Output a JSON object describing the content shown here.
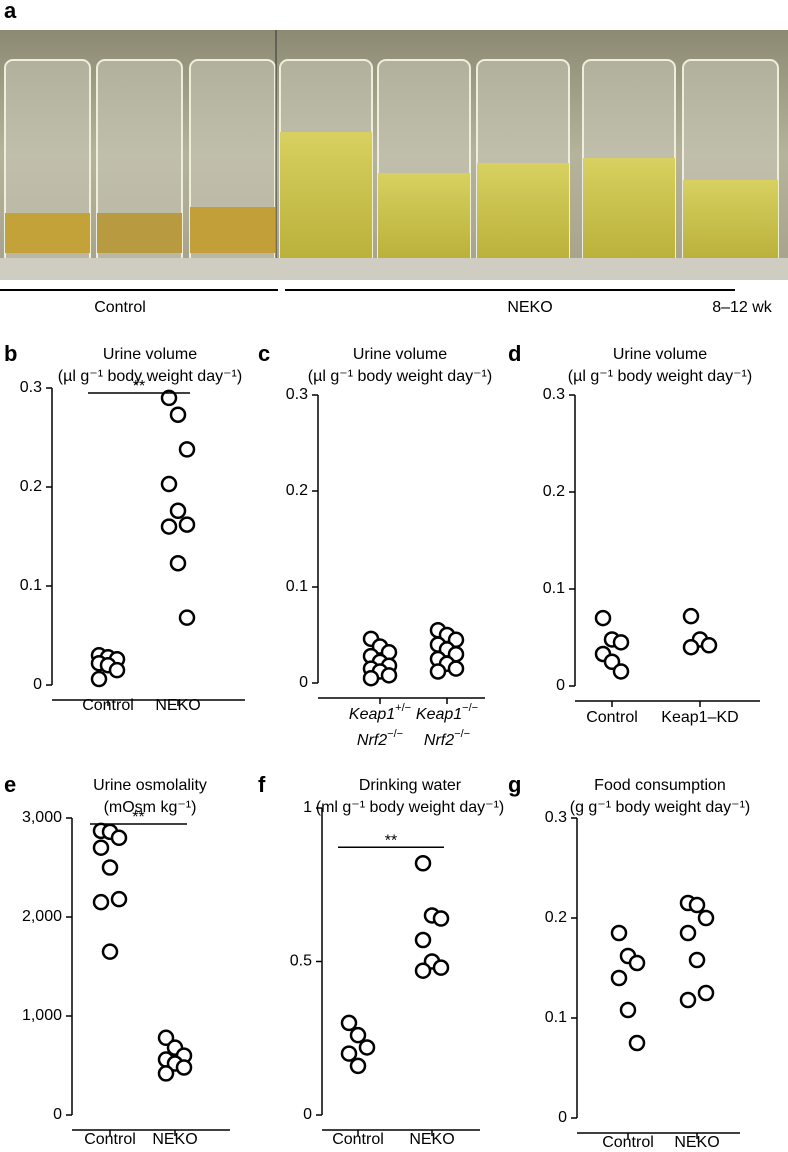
{
  "photo_panel": {
    "panel": "a",
    "groups": [
      "Control",
      "NEKO"
    ],
    "age": "8–12 wk"
  },
  "chart_data": [
    {
      "type": "scatter",
      "panel": "b",
      "title": "Urine volume",
      "subtitle": "(µl g⁻¹ body weight day⁻¹)",
      "categories": [
        "Control",
        "NEKO"
      ],
      "values": [
        [
          0.03,
          0.028,
          0.026,
          0.022,
          0.02,
          0.015,
          0.006
        ],
        [
          0.29,
          0.273,
          0.238,
          0.203,
          0.176,
          0.162,
          0.16,
          0.123,
          0.068
        ]
      ],
      "ylim": [
        0,
        0.3
      ],
      "yticks": [
        0,
        0.1,
        0.2,
        0.3
      ],
      "annotation": "**"
    },
    {
      "type": "scatter",
      "panel": "c",
      "title": "Urine volume",
      "subtitle": "(µl g⁻¹ body weight day⁻¹)",
      "categories": [
        [
          {
            "gene": "Keap1",
            "sup": "+/−"
          },
          {
            "gene": "Nrf2",
            "sup": "−/−"
          }
        ],
        [
          {
            "gene": "Keap1",
            "sup": "−/−"
          },
          {
            "gene": "Nrf2",
            "sup": "−/−"
          }
        ]
      ],
      "values": [
        [
          0.046,
          0.038,
          0.032,
          0.028,
          0.022,
          0.018,
          0.015,
          0.012,
          0.008,
          0.005
        ],
        [
          0.055,
          0.05,
          0.045,
          0.04,
          0.035,
          0.03,
          0.025,
          0.02,
          0.015,
          0.012
        ]
      ],
      "ylim": [
        0,
        0.3
      ],
      "yticks": [
        0,
        0.1,
        0.2,
        0.3
      ]
    },
    {
      "type": "scatter",
      "panel": "d",
      "title": "Urine volume",
      "subtitle": "(µl g⁻¹ body weight day⁻¹)",
      "categories": [
        "Control",
        "Keap1–KD"
      ],
      "values": [
        [
          0.07,
          0.048,
          0.045,
          0.033,
          0.025,
          0.015
        ],
        [
          0.072,
          0.048,
          0.042,
          0.04
        ]
      ],
      "ylim": [
        0,
        0.3
      ],
      "yticks": [
        0,
        0.1,
        0.2,
        0.3
      ]
    },
    {
      "type": "scatter",
      "panel": "e",
      "title": "Urine osmolality",
      "subtitle": "(mOsm kg⁻¹)",
      "categories": [
        "Control",
        "NEKO"
      ],
      "values": [
        [
          2870,
          2860,
          2800,
          2700,
          2500,
          2180,
          2150,
          1650
        ],
        [
          780,
          680,
          600,
          560,
          520,
          480,
          420
        ]
      ],
      "ylim": [
        0,
        3000
      ],
      "yticks": [
        0,
        {
          "value": 1000,
          "label": "1,000"
        },
        {
          "value": 2000,
          "label": "2,000"
        },
        {
          "value": 3000,
          "label": "3,000"
        }
      ],
      "annotation": "**"
    },
    {
      "type": "scatter",
      "panel": "f",
      "title": "Drinking water",
      "subtitle": "(ml g⁻¹ body weight day⁻¹)",
      "categories": [
        "Control",
        "NEKO"
      ],
      "values": [
        [
          0.3,
          0.26,
          0.22,
          0.2,
          0.16
        ],
        [
          0.82,
          0.65,
          0.64,
          0.57,
          0.5,
          0.48,
          0.47
        ]
      ],
      "ylim": [
        0,
        1
      ],
      "yticks": [
        0,
        0.5,
        1
      ],
      "annotation": "**"
    },
    {
      "type": "scatter",
      "panel": "g",
      "title": "Food consumption",
      "subtitle": "(g g⁻¹ body weight day⁻¹)",
      "categories": [
        "Control",
        "NEKO"
      ],
      "values": [
        [
          0.185,
          0.162,
          0.155,
          0.14,
          0.108,
          0.075
        ],
        [
          0.215,
          0.213,
          0.2,
          0.185,
          0.158,
          0.125,
          0.118
        ]
      ],
      "ylim": [
        0,
        0.3
      ],
      "yticks": [
        0,
        0.1,
        0.2,
        0.3
      ]
    }
  ]
}
